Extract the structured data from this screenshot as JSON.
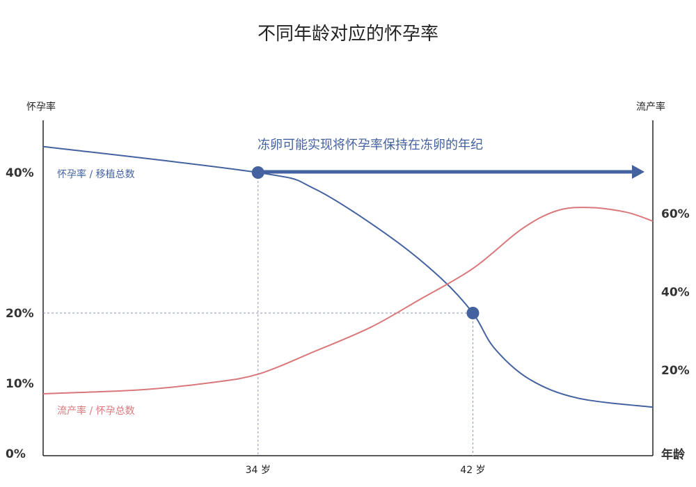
{
  "chart_data": {
    "type": "line",
    "title": "不同年龄对应的怀孕率",
    "y_left_label": "怀孕率",
    "y_right_label": "流产率",
    "x_label": "年龄",
    "x_ticks": [
      {
        "value": 34,
        "label": "34 岁"
      },
      {
        "value": 42,
        "label": "42 岁"
      }
    ],
    "y_left_ticks": [
      {
        "value": 0,
        "label": "0%"
      },
      {
        "value": 10,
        "label": "10%"
      },
      {
        "value": 20,
        "label": "20%"
      },
      {
        "value": 40,
        "label": "40%"
      }
    ],
    "y_right_ticks": [
      {
        "value": 20,
        "label": "20%"
      },
      {
        "value": 40,
        "label": "40%"
      },
      {
        "value": 60,
        "label": "60%"
      }
    ],
    "xlim": [
      26,
      48.7
    ],
    "ylim_left": [
      0,
      44
    ],
    "ylim_right": [
      -1.3,
      80
    ],
    "grid": false,
    "series": [
      {
        "name": "怀孕率 / 移植总数",
        "axis": "left",
        "color": "#4461a0",
        "x": [
          26,
          34,
          36.1,
          38.9,
          40.8,
          42,
          42.8,
          44.1,
          45.9,
          48.7
        ],
        "y": [
          43.7,
          40,
          37.7,
          30.9,
          25,
          20,
          15,
          10.6,
          7.9,
          6.6
        ]
      },
      {
        "name": "流产率 / 怀孕总数",
        "axis": "right",
        "color": "#d9787a",
        "x": [
          26,
          29.6,
          32.2,
          34,
          36.1,
          38.2,
          40,
          42,
          43.8,
          45.1,
          46.3,
          47.7,
          48.7
        ],
        "y": [
          14,
          15,
          16.8,
          19,
          24.8,
          31,
          38,
          46,
          56,
          60.7,
          61.6,
          60.4,
          58.1
        ]
      }
    ],
    "markers": [
      {
        "x": 34,
        "y": 40
      },
      {
        "x": 42,
        "y": 20
      }
    ],
    "annotation": "冻卵可能实现将怀孕率保持在冻卵的年纪"
  }
}
